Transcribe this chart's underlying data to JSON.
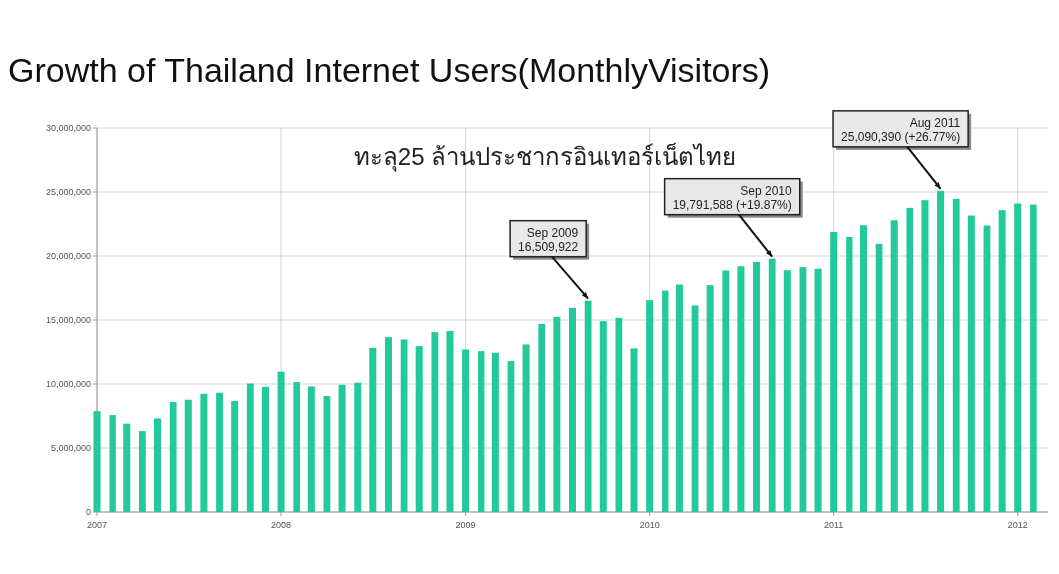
{
  "chart_data": {
    "type": "bar",
    "title": "Growth of Thailand Internet Users(MonthlyVisitors)",
    "subtitle": "ทะลุ25 ล้านประชากรอินเทอร์เน็ตไทย",
    "x": [
      "2007-01",
      "2007-02",
      "2007-03",
      "2007-04",
      "2007-05",
      "2007-06",
      "2007-07",
      "2007-08",
      "2007-09",
      "2007-10",
      "2007-11",
      "2007-12",
      "2008-01",
      "2008-02",
      "2008-03",
      "2008-04",
      "2008-05",
      "2008-06",
      "2008-07",
      "2008-08",
      "2008-09",
      "2008-10",
      "2008-11",
      "2008-12",
      "2009-01",
      "2009-02",
      "2009-03",
      "2009-04",
      "2009-05",
      "2009-06",
      "2009-07",
      "2009-08",
      "2009-09",
      "2009-10",
      "2009-11",
      "2009-12",
      "2010-01",
      "2010-02",
      "2010-03",
      "2010-04",
      "2010-05",
      "2010-06",
      "2010-07",
      "2010-08",
      "2010-09",
      "2010-10",
      "2010-11",
      "2010-12",
      "2011-01",
      "2011-02",
      "2011-03",
      "2011-04",
      "2011-05",
      "2011-06",
      "2011-07",
      "2011-08",
      "2011-09",
      "2011-10",
      "2011-11",
      "2011-12",
      "2012-01",
      "2012-02"
    ],
    "values": [
      7880000,
      7570000,
      6900000,
      6320000,
      7310000,
      8590000,
      8770000,
      9240000,
      9320000,
      8670000,
      10040000,
      9780000,
      10960000,
      10150000,
      9810000,
      9060000,
      9940000,
      10100000,
      12830000,
      13660000,
      13480000,
      12960000,
      14050000,
      14130000,
      12700000,
      12570000,
      12440000,
      11790000,
      13090000,
      14700000,
      15250000,
      15950000,
      16509922,
      14910000,
      15170000,
      12780000,
      16550000,
      17300000,
      17770000,
      16130000,
      17720000,
      18870000,
      19200000,
      19540000,
      19791588,
      18890000,
      19130000,
      19000000,
      21880000,
      21490000,
      22400000,
      20950000,
      22790000,
      23760000,
      24360000,
      25090390,
      24460000,
      23160000,
      22380000,
      23580000,
      24100000,
      24020000
    ],
    "color": "#22c99a",
    "xlim": [
      "2007-01",
      "2012-03"
    ],
    "xticks": [
      "2007",
      "2008",
      "2009",
      "2010",
      "2011",
      "2012"
    ],
    "ylim": [
      0,
      30000000
    ],
    "yticks": [
      0,
      {
        "value": 5000000,
        "label": "5,000,000"
      },
      {
        "value": 10000000,
        "label": "10,000,000"
      },
      {
        "value": 15000000,
        "label": "15,000,000"
      },
      {
        "value": 20000000,
        "label": "20,000,000"
      },
      {
        "value": 25000000,
        "label": "25,000,000"
      },
      {
        "value": 30000000,
        "label": "30,000,000"
      }
    ],
    "grid": true,
    "annotations": [
      {
        "text": "Sep 2009\n16,509,922",
        "x": "2009-09",
        "y": 16509922
      },
      {
        "text": "Sep 2010\n19,791,588 (+19.87%)",
        "x": "2010-09",
        "y": 19791588
      },
      {
        "text": "Aug 2011\n25,090,390 (+26.77%)",
        "x": "2011-08",
        "y": 25090390
      }
    ]
  }
}
